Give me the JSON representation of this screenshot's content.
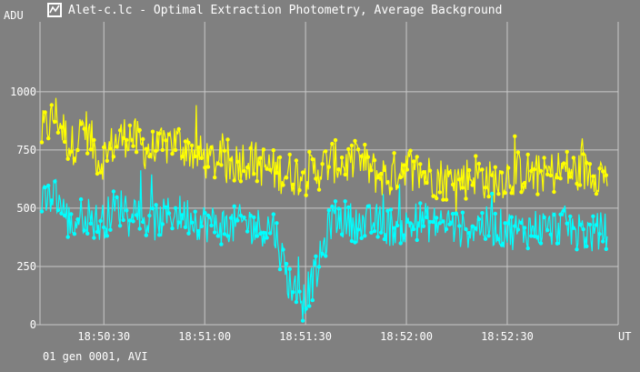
{
  "window": {
    "title": "Alet-c.lc - Optimal Extraction Photometry, Average Background",
    "icon": "light-curve-app-icon"
  },
  "status": {
    "text": "01 gen 0001, AVI"
  },
  "colors": {
    "background": "#808080",
    "grid": "#c8c8c8",
    "series_upper": "#ffff00",
    "series_lower": "#00ffff",
    "text": "#ffffff"
  },
  "chart_data": {
    "type": "line",
    "xlabel": "UT",
    "ylabel": "ADU",
    "x_ticks": [
      "18:50:30",
      "18:51:00",
      "18:51:30",
      "18:52:00",
      "18:52:30"
    ],
    "x_range": [
      "18:50:11",
      "18:53:03"
    ],
    "y_ticks": [
      0,
      250,
      500,
      750,
      1000
    ],
    "ylim": [
      0,
      1300
    ],
    "grid": true,
    "series": [
      {
        "color": "#ffff00",
        "values": [
          820,
          905,
          760,
          850,
          700,
          780,
          820,
          760,
          740,
          790,
          760,
          720,
          700,
          690,
          715,
          690,
          660,
          650,
          640,
          665,
          700,
          690,
          700,
          650,
          630,
          690,
          650,
          640,
          620,
          625,
          650,
          610,
          640,
          655,
          640,
          650,
          665,
          650,
          660,
          645
        ]
      },
      {
        "color": "#00ffff",
        "values": [
          510,
          560,
          420,
          480,
          430,
          500,
          510,
          450,
          440,
          480,
          470,
          440,
          430,
          420,
          440,
          420,
          420,
          190,
          100,
          230,
          460,
          450,
          430,
          440,
          420,
          410,
          450,
          430,
          440,
          400,
          430,
          420,
          410,
          400,
          420,
          410,
          430,
          400,
          390,
          410
        ]
      }
    ]
  }
}
